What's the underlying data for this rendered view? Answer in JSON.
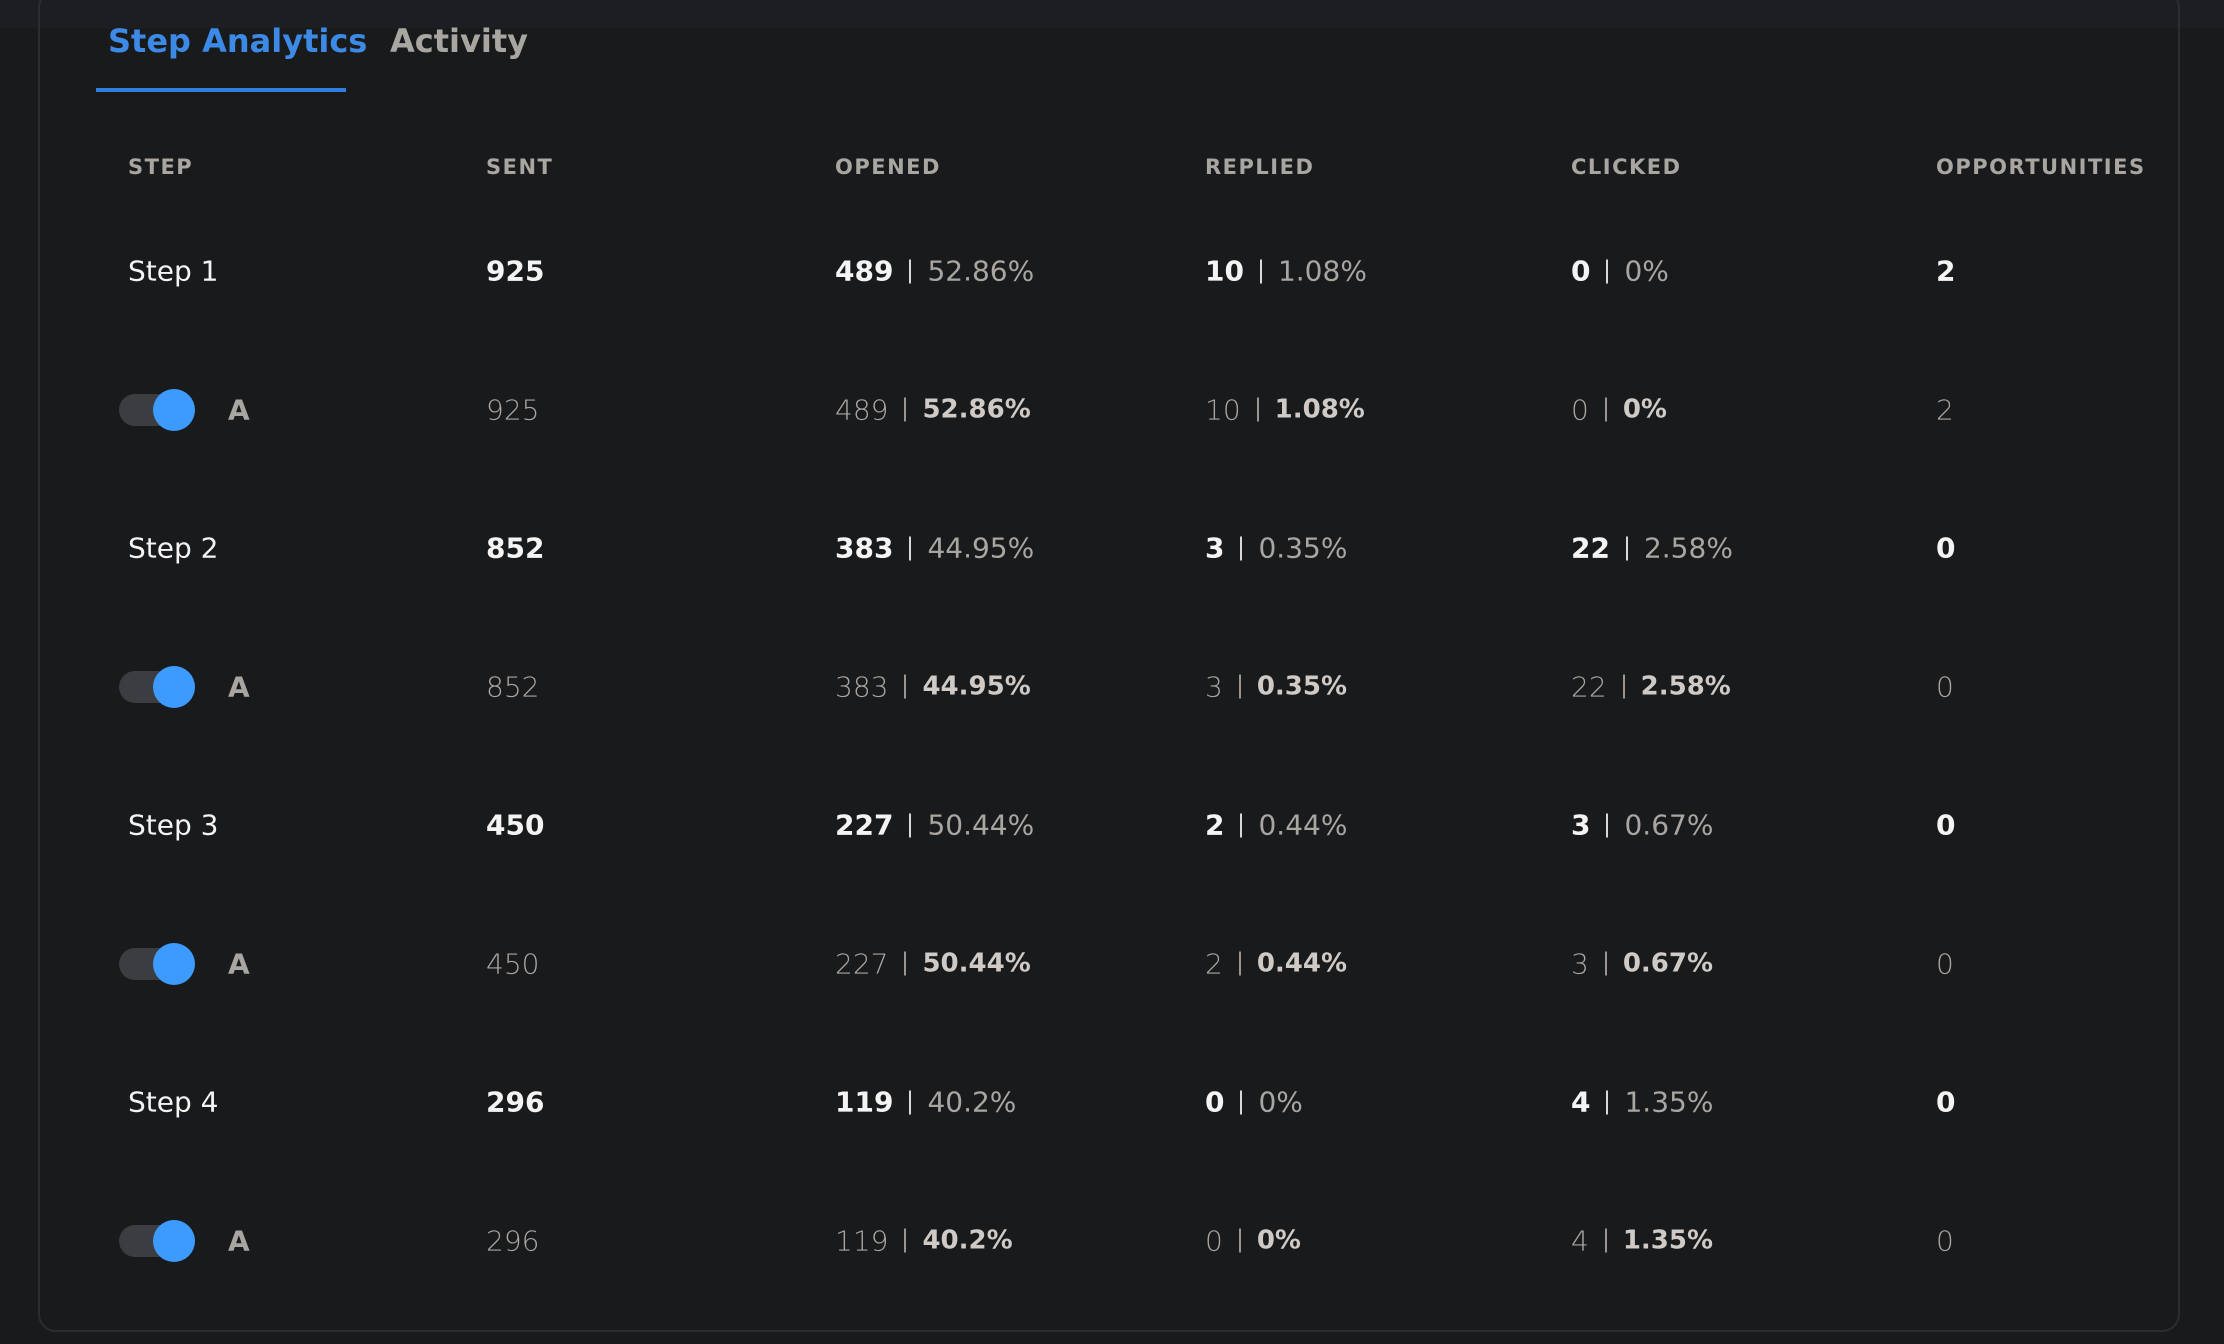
{
  "tabs": [
    "Step Analytics",
    "Activity"
  ],
  "table": {
    "headers": [
      "STEP",
      "SENT",
      "OPENED",
      "REPLIED",
      "CLICKED",
      "OPPORTUNITIES"
    ],
    "steps": [
      {
        "name": "Step 1",
        "sent": "925",
        "opened": [
          "489",
          "52.86%"
        ],
        "replied": [
          "10",
          "1.08%"
        ],
        "clicked": [
          "0",
          "0%"
        ],
        "opportunities": "2",
        "variants": [
          {
            "name": "A",
            "sent": "925",
            "opened": [
              "489",
              "52.86%"
            ],
            "replied": [
              "10",
              "1.08%"
            ],
            "clicked": [
              "0",
              "0%"
            ],
            "opportunities": "2"
          }
        ]
      },
      {
        "name": "Step 2",
        "sent": "852",
        "opened": [
          "383",
          "44.95%"
        ],
        "replied": [
          "3",
          "0.35%"
        ],
        "clicked": [
          "22",
          "2.58%"
        ],
        "opportunities": "0",
        "variants": [
          {
            "name": "A",
            "sent": "852",
            "opened": [
              "383",
              "44.95%"
            ],
            "replied": [
              "3",
              "0.35%"
            ],
            "clicked": [
              "22",
              "2.58%"
            ],
            "opportunities": "0"
          }
        ]
      },
      {
        "name": "Step 3",
        "sent": "450",
        "opened": [
          "227",
          "50.44%"
        ],
        "replied": [
          "2",
          "0.44%"
        ],
        "clicked": [
          "3",
          "0.67%"
        ],
        "opportunities": "0",
        "variants": [
          {
            "name": "A",
            "sent": "450",
            "opened": [
              "227",
              "50.44%"
            ],
            "replied": [
              "2",
              "0.44%"
            ],
            "clicked": [
              "3",
              "0.67%"
            ],
            "opportunities": "0"
          }
        ]
      },
      {
        "name": "Step 4",
        "sent": "296",
        "opened": [
          "119",
          "40.2%"
        ],
        "replied": [
          "0",
          "0%"
        ],
        "clicked": [
          "4",
          "1.35%"
        ],
        "opportunities": "0",
        "variants": [
          {
            "name": "A",
            "sent": "296",
            "opened": [
              "119",
              "40.2%"
            ],
            "replied": [
              "0",
              "0%"
            ],
            "clicked": [
              "4",
              "1.35%"
            ],
            "opportunities": "0"
          }
        ]
      }
    ]
  }
}
